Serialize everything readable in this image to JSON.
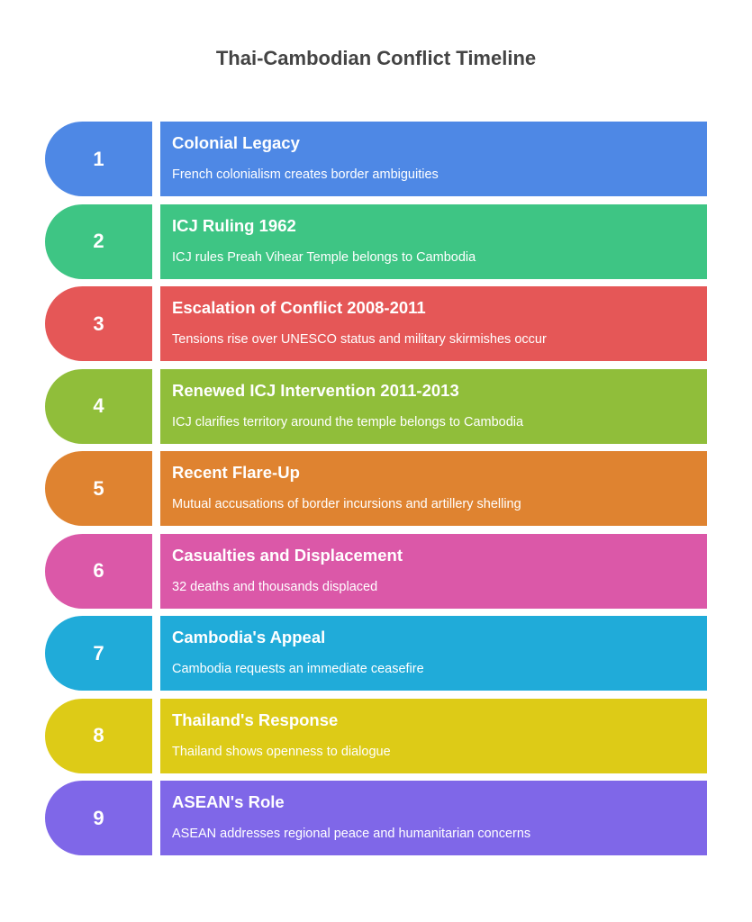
{
  "title": "Thai-Cambodian Conflict Timeline",
  "steps": [
    {
      "number": "1",
      "heading": "Colonial Legacy",
      "description": "French colonialism creates border ambiguities",
      "color": "#4E88E5"
    },
    {
      "number": "2",
      "heading": "ICJ Ruling 1962",
      "description": "ICJ rules Preah Vihear Temple belongs to Cambodia",
      "color": "#3EC584"
    },
    {
      "number": "3",
      "heading": "Escalation of Conflict 2008-2011",
      "description": "Tensions rise over UNESCO status and military skirmishes occur",
      "color": "#E55757"
    },
    {
      "number": "4",
      "heading": "Renewed ICJ Intervention 2011-2013",
      "description": "ICJ clarifies territory around the temple belongs to Cambodia",
      "color": "#90BE3A"
    },
    {
      "number": "5",
      "heading": "Recent Flare-Up",
      "description": "Mutual accusations of border incursions and artillery shelling",
      "color": "#DF8330"
    },
    {
      "number": "6",
      "heading": "Casualties and Displacement",
      "description": "32 deaths and thousands displaced",
      "color": "#DB58A8"
    },
    {
      "number": "7",
      "heading": "Cambodia's Appeal",
      "description": "Cambodia requests an immediate ceasefire",
      "color": "#20ABD9"
    },
    {
      "number": "8",
      "heading": "Thailand's Response",
      "description": "Thailand shows openness to dialogue",
      "color": "#DDCB17"
    },
    {
      "number": "9",
      "heading": "ASEAN's Role",
      "description": "ASEAN addresses regional peace and humanitarian concerns",
      "color": "#7F67E8"
    }
  ]
}
